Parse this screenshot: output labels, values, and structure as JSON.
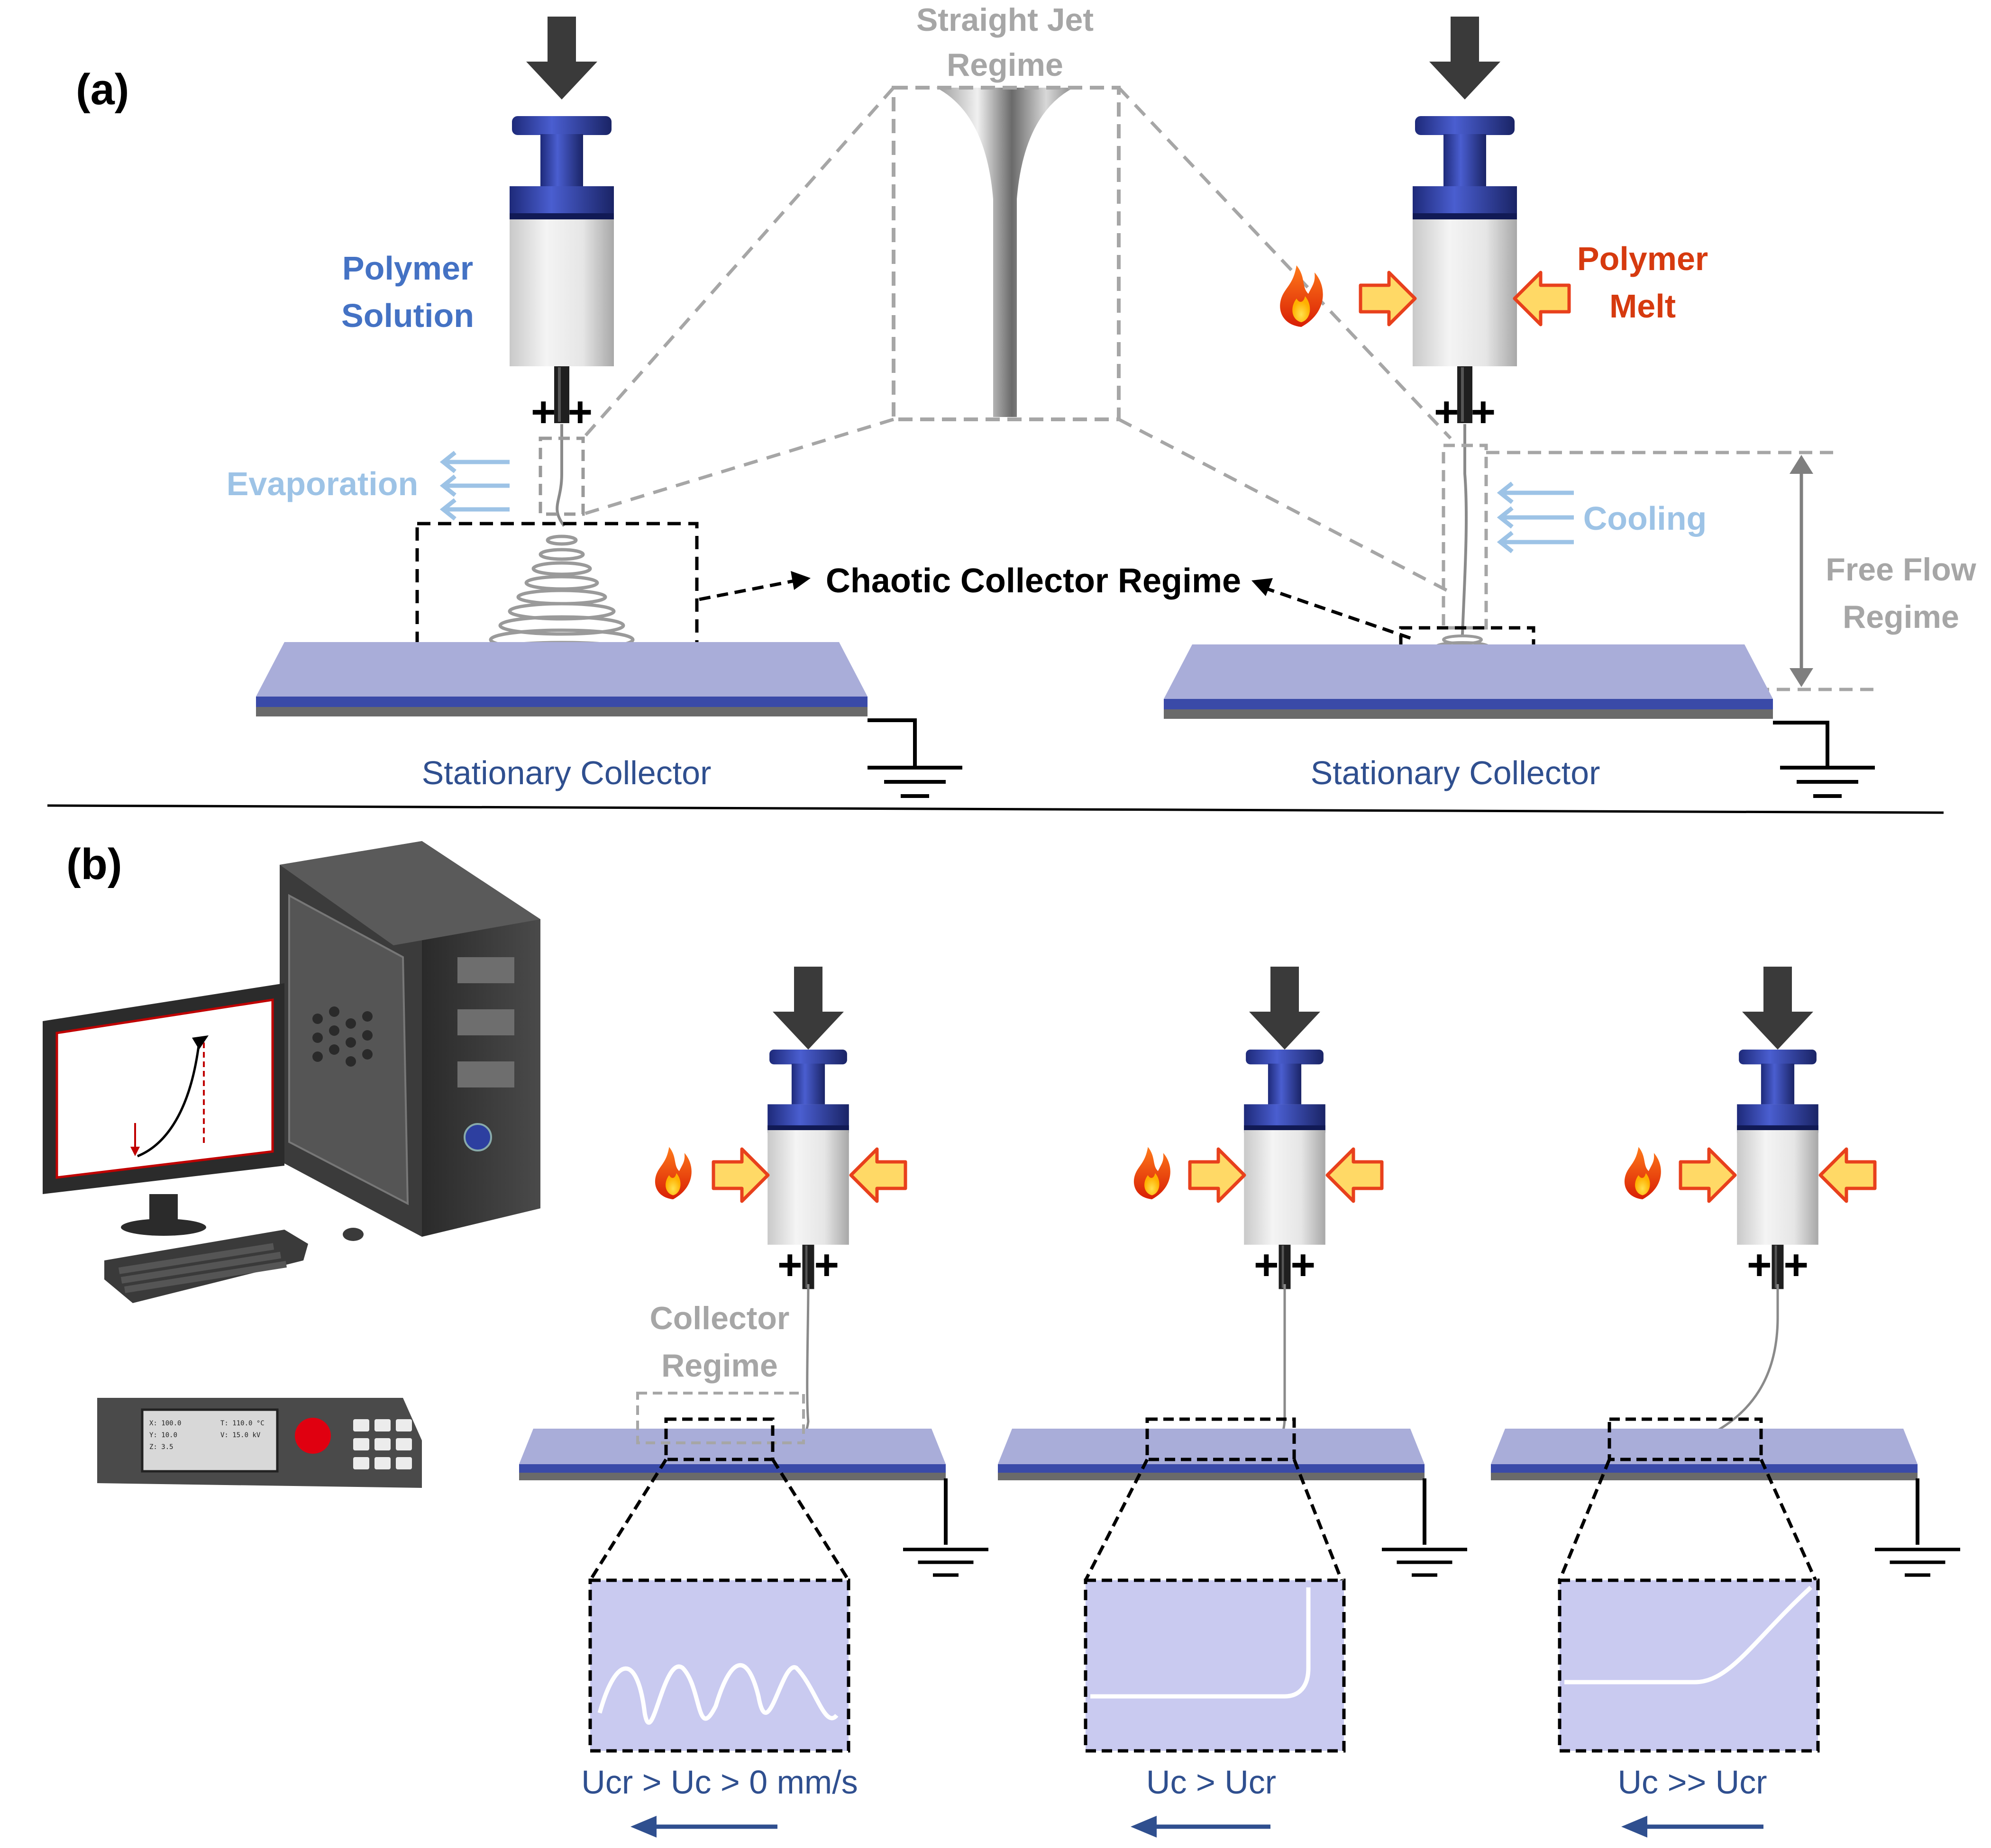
{
  "panel_labels": {
    "a": "(a)",
    "b": "(b)"
  },
  "part_a": {
    "left_material": [
      "Polymer",
      "Solution"
    ],
    "right_material": [
      "Polymer",
      "Melt"
    ],
    "straight_jet": [
      "Straight Jet",
      "Regime"
    ],
    "evaporation": "Evaporation",
    "cooling": "Cooling",
    "free_flow": [
      "Free Flow",
      "Regime"
    ],
    "chaotic": "Chaotic Collector Regime",
    "collector_left": "Stationary Collector",
    "collector_right": "Stationary Collector",
    "polarity": "+ +"
  },
  "part_b": {
    "collector_regime": [
      "Collector",
      "Regime"
    ],
    "conditions": [
      "Ucr > Uc > 0 mm/s",
      "Uc > Ucr",
      "Uc >> Ucr"
    ],
    "polarity": "+ +",
    "controller_readout": {
      "x": "X:  100.0",
      "y": "Y:   10.0",
      "z": "Z:    3.5",
      "t": "T: 110.0 °C",
      "v": "V:  15.0 kV"
    }
  },
  "colors": {
    "plunger_blue": "#2d3fa0",
    "collector_top": "#a9add9",
    "collector_stripe": "#3a4aa8",
    "arrow_fill": "#ffd966",
    "arrow_edge": "#e8401c",
    "flame": "#e8401c",
    "zoom_fill": "#c9caf0"
  },
  "icons": [
    "down-arrow-icon",
    "flame-icon",
    "heat-arrow-icon",
    "ground-icon",
    "computer-icon",
    "controller-icon"
  ]
}
